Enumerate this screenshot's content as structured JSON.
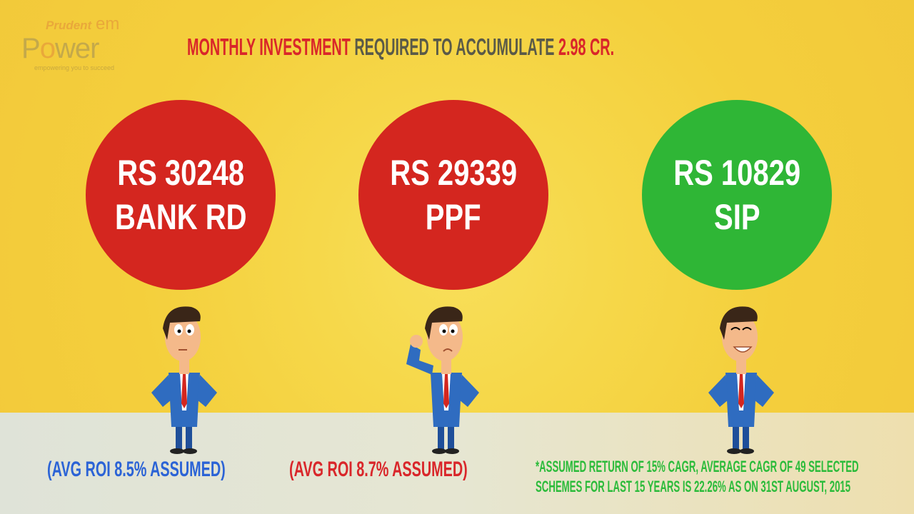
{
  "logo": {
    "line1": "Prudent",
    "line2": "em",
    "line3a": "P",
    "line3b": "o",
    "line3c": "wer",
    "tagline": "empowering you to succeed"
  },
  "title": {
    "part1": "MONTHLY INVESTMENT",
    "part2": " REQUIRED TO ACCUMULATE ",
    "part3": "2.98 CR."
  },
  "options": [
    {
      "amount": "RS 30248",
      "name": "BANK RD",
      "color": "#d4261f",
      "note": "(AVG ROI 8.5% ASSUMED)",
      "mood": "neutral"
    },
    {
      "amount": "RS 29339",
      "name": "PPF",
      "color": "#d4261f",
      "note": "(AVG ROI 8.7% ASSUMED)",
      "mood": "confused"
    },
    {
      "amount": "RS 10829",
      "name": "SIP",
      "color": "#2fb636",
      "note_lines": [
        "*ASSUMED RETURN OF 15% CAGR, AVERAGE CAGR OF 49 SELECTED",
        "SCHEMES FOR LAST 15 YEARS IS 22.26% AS ON 31ST AUGUST, 2015"
      ],
      "mood": "happy"
    }
  ]
}
